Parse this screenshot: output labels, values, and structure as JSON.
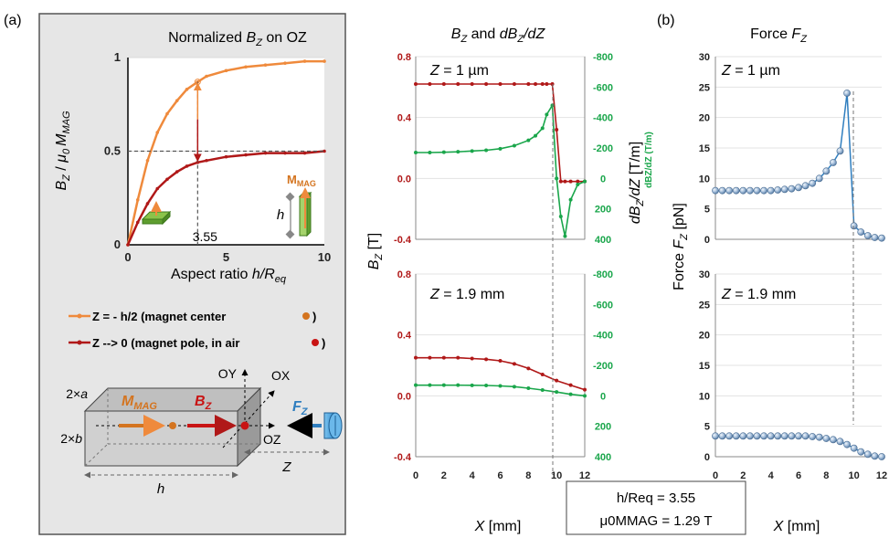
{
  "panel_labels": {
    "a": "(a)",
    "b": "(b)"
  },
  "inset": {
    "title_prefix": "Normalized ",
    "title_var": "B",
    "title_sub": "Z",
    "title_suffix": " on OZ",
    "ylabel": "B_Z / μ0 M_MAG",
    "xlabel": "Aspect ratio h/R_eq",
    "xticks": [
      "0",
      "5",
      "10"
    ],
    "yticks": [
      "0",
      "0.5",
      "1"
    ],
    "marker_label": "3.55",
    "mmag_label": "M",
    "mmag_sub": "MAG",
    "h_label": "h"
  },
  "legend": [
    {
      "text": "Z = - h/2 (magnet center ",
      "color": "#ef8a3c"
    },
    {
      "text": "Z --> 0  (magnet pole, in air ",
      "color": "#b01818"
    }
  ],
  "diagram": {
    "two_a": "2×a",
    "two_b": "2×b",
    "oy": "OY",
    "ox": "OX",
    "oz": "OZ",
    "mmag": "M",
    "mmag_sub": "MAG",
    "bz": "B",
    "bz_sub": "Z",
    "fz": "F",
    "fz_sub": "Z",
    "h": "h",
    "z": "Z"
  },
  "middle": {
    "title": "B_Z and dB_Z/dZ",
    "top_label": "Z = 1 µm",
    "bottom_label": "Z = 1.9 mm",
    "left_ylabel": "B_Z [T]",
    "right_ylabel": "dB_Z/dZ [T/m]",
    "right_small": "dBZ/dZ (T/m)",
    "left_ticks": [
      "0.8",
      "0.4",
      "0.0",
      "-0.4"
    ],
    "right_ticks": [
      "-800",
      "-600",
      "-400",
      "-200",
      "0",
      "200",
      "400"
    ],
    "xticks": [
      "0",
      "2",
      "4",
      "6",
      "8",
      "10",
      "12"
    ],
    "xlabel": "X [mm]"
  },
  "right_panel": {
    "title": "Force F_Z",
    "top_label": "Z = 1 µm",
    "bottom_label": "Z = 1.9 mm",
    "ylabel": "Force F_Z [pN]",
    "yticks": [
      "30",
      "25",
      "20",
      "15",
      "10",
      "5",
      "0"
    ],
    "xticks": [
      "0",
      "2",
      "4",
      "6",
      "8",
      "10",
      "12"
    ],
    "xlabel": "X [mm]"
  },
  "info_box": {
    "line1": "h/Req = 3.55",
    "line2": "μ0MMAG = 1.29 T"
  },
  "colors": {
    "orange": "#ef8a3c",
    "darkred": "#b01818",
    "green": "#1aa64b",
    "blue": "#2f7ebf",
    "ball": "#9db8d6"
  },
  "chart_data": [
    {
      "type": "line",
      "xlabel": "Aspect ratio h/Req",
      "ylabel": "BZ / μ0 MMAG",
      "xlim": [
        0,
        10
      ],
      "ylim": [
        0,
        1
      ],
      "x": [
        0,
        0.5,
        1,
        1.5,
        2,
        2.5,
        3,
        3.55,
        4,
        5,
        6,
        7,
        8,
        9,
        10
      ],
      "series": [
        {
          "name": "Z = - h/2 (magnet center)",
          "values": [
            0,
            0.24,
            0.45,
            0.6,
            0.7,
            0.77,
            0.83,
            0.87,
            0.9,
            0.93,
            0.95,
            0.96,
            0.97,
            0.98,
            0.98
          ]
        },
        {
          "name": "Z --> 0 (magnet pole, in air)",
          "values": [
            0,
            0.12,
            0.22,
            0.3,
            0.35,
            0.39,
            0.42,
            0.44,
            0.45,
            0.47,
            0.48,
            0.49,
            0.49,
            0.49,
            0.5
          ]
        }
      ]
    },
    {
      "type": "line",
      "panel": "Z = 1 µm",
      "xlabel": "X [mm]",
      "x": [
        0,
        1,
        2,
        3,
        4,
        5,
        6,
        7,
        8,
        8.5,
        9,
        9.3,
        9.7,
        10,
        10.3,
        10.6,
        11,
        11.5,
        12
      ],
      "series": [
        {
          "name": "BZ",
          "axis": "left",
          "ylim": [
            -0.4,
            0.8
          ],
          "values": [
            0.62,
            0.62,
            0.62,
            0.62,
            0.62,
            0.62,
            0.62,
            0.62,
            0.62,
            0.62,
            0.62,
            0.62,
            0.62,
            0.32,
            -0.02,
            -0.02,
            -0.02,
            -0.02,
            -0.02
          ]
        },
        {
          "name": "dBZ/dZ (T/m)",
          "axis": "right",
          "ylim": [
            -800,
            400
          ],
          "values": [
            -170,
            -170,
            -172,
            -175,
            -180,
            -185,
            -195,
            -215,
            -250,
            -280,
            -330,
            -420,
            -480,
            0,
            250,
            380,
            140,
            40,
            20
          ]
        }
      ]
    },
    {
      "type": "line",
      "panel": "Z = 1.9 mm",
      "xlabel": "X [mm]",
      "x": [
        0,
        1,
        2,
        3,
        4,
        5,
        6,
        7,
        8,
        9,
        10,
        11,
        12
      ],
      "series": [
        {
          "name": "BZ",
          "axis": "left",
          "ylim": [
            -0.4,
            0.8
          ],
          "values": [
            0.25,
            0.25,
            0.25,
            0.25,
            0.245,
            0.24,
            0.23,
            0.21,
            0.18,
            0.14,
            0.1,
            0.07,
            0.04
          ]
        },
        {
          "name": "dBZ/dZ (T/m)",
          "axis": "right",
          "ylim": [
            -800,
            400
          ],
          "values": [
            -70,
            -70,
            -70,
            -70,
            -69,
            -68,
            -65,
            -60,
            -50,
            -38,
            -25,
            -10,
            0
          ]
        }
      ]
    },
    {
      "type": "scatter",
      "panel": "Z = 1 µm",
      "xlabel": "X [mm]",
      "ylabel": "Force FZ [pN]",
      "ylim": [
        0,
        30
      ],
      "x": [
        0,
        0.5,
        1,
        1.5,
        2,
        2.5,
        3,
        3.5,
        4,
        4.5,
        5,
        5.5,
        6,
        6.5,
        7,
        7.5,
        8,
        8.5,
        9,
        9.5,
        10,
        10.5,
        11,
        11.5,
        12
      ],
      "values": [
        8,
        8,
        8,
        8,
        8,
        8,
        8,
        8,
        8,
        8.1,
        8.2,
        8.3,
        8.5,
        8.8,
        9.2,
        10,
        11.2,
        12.6,
        14.5,
        24,
        2.2,
        1.2,
        0.6,
        0.3,
        0.2
      ]
    },
    {
      "type": "scatter",
      "panel": "Z = 1.9 mm",
      "xlabel": "X [mm]",
      "ylabel": "Force FZ [pN]",
      "ylim": [
        0,
        30
      ],
      "x": [
        0,
        0.5,
        1,
        1.5,
        2,
        2.5,
        3,
        3.5,
        4,
        4.5,
        5,
        5.5,
        6,
        6.5,
        7,
        7.5,
        8,
        8.5,
        9,
        9.5,
        10,
        10.5,
        11,
        11.5,
        12
      ],
      "values": [
        3.4,
        3.4,
        3.4,
        3.4,
        3.4,
        3.4,
        3.4,
        3.4,
        3.4,
        3.4,
        3.4,
        3.4,
        3.4,
        3.4,
        3.3,
        3.2,
        3.0,
        2.8,
        2.5,
        2.0,
        1.4,
        0.8,
        0.4,
        0.1,
        0
      ]
    }
  ]
}
